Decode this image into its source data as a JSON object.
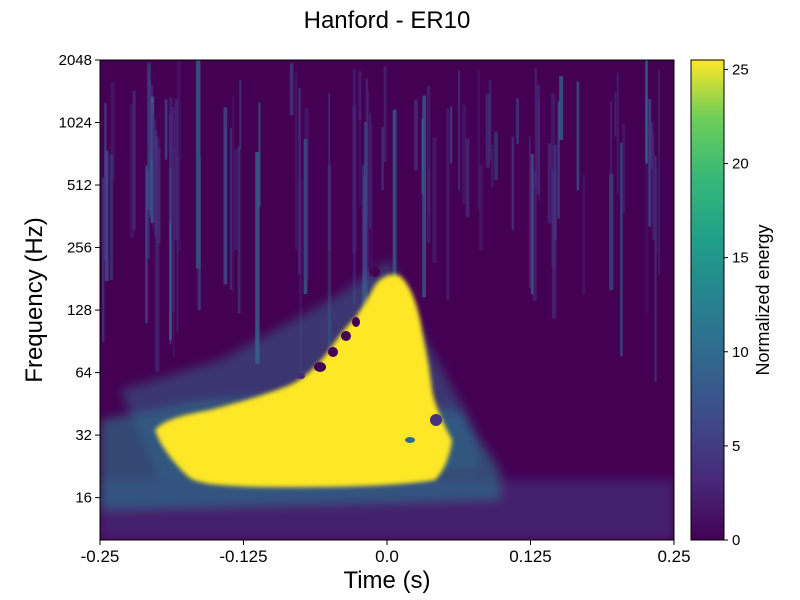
{
  "chart_data": {
    "type": "heatmap",
    "title": "Hanford - ER10",
    "xlabel": "Time (s)",
    "ylabel": "Frequency (Hz)",
    "x_ticks": [
      "-0.25",
      "-0.125",
      "0.0",
      "0.125",
      "0.25"
    ],
    "x_tick_values": [
      -0.25,
      -0.125,
      0.0,
      0.125,
      0.25
    ],
    "xlim": [
      -0.25,
      0.25
    ],
    "y_scale": "log2",
    "y_ticks": [
      "16",
      "32",
      "64",
      "128",
      "256",
      "512",
      "1024",
      "2048"
    ],
    "y_tick_values": [
      16,
      32,
      64,
      128,
      256,
      512,
      1024,
      2048
    ],
    "ylim": [
      10,
      2048
    ],
    "colorbar": {
      "label": "Normalized energy",
      "ticks": [
        "0",
        "5",
        "10",
        "15",
        "20",
        "25"
      ],
      "tick_values": [
        0,
        5,
        10,
        15,
        20,
        25
      ],
      "range": [
        0,
        25.5
      ],
      "colormap": "viridis"
    },
    "colors": {
      "low": "#440154",
      "high": "#fde725"
    }
  }
}
